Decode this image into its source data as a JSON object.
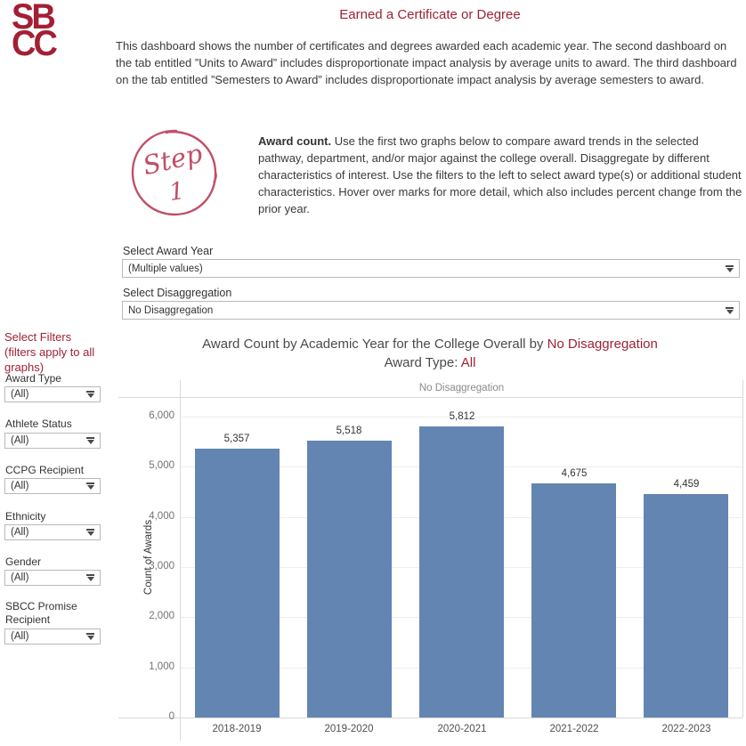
{
  "header": {
    "logo_line1": "SB",
    "logo_line2": "CC",
    "title": "Earned a Certificate or Degree",
    "description": "This dashboard shows the number of certificates and degrees awarded each academic year. The second dashboard on the tab entitled ”Units to Award” includes disproportionate impact analysis by average units to award. The third dashboard on the tab entitled ”Semesters to Award” includes disproportionate impact analysis by average semesters to award."
  },
  "step": {
    "circle_word": "Step",
    "circle_number": "1",
    "accent_color": "#c14f68",
    "bold_lead": "Award count.",
    "text": " Use the first two graphs below to compare award trends in the selected pathway, department, and/or major against the college overall. Disaggregate by different characteristics of interest. Use the filters to the left to select award type(s) or additional student characteristics. Hover over marks for more detail, which also includes percent change from the prior year."
  },
  "selectors": {
    "award_year_label": "Select Award Year",
    "award_year_value": "(Multiple values)",
    "disaggregation_label": "Select Disaggregation",
    "disaggregation_value": "No Disaggregation"
  },
  "sidebar": {
    "heading": "Select Filters (filters apply to all graphs)",
    "filters": [
      {
        "label": "Award Type",
        "value": "(All)"
      },
      {
        "label": "Athlete Status",
        "value": "(All)"
      },
      {
        "label": "CCPG Recipient",
        "value": "(All)"
      },
      {
        "label": "Ethnicity",
        "value": "(All)"
      },
      {
        "label": "Gender",
        "value": "(All)"
      },
      {
        "label": "SBCC Promise Recipient",
        "value": "(All)"
      }
    ]
  },
  "chart": {
    "title_prefix": "Award Count by Academic Year for the College Overall by ",
    "title_highlight": "No Disaggregation",
    "subtitle_prefix": "Award Type: ",
    "subtitle_value": "All",
    "panel_header": "No Disaggregation",
    "ylabel": "Count of Awards"
  },
  "chart_data": {
    "type": "bar",
    "title": "Award Count by Academic Year for the College Overall by No Disaggregation",
    "subtitle": "Award Type: All",
    "panel_header": "No Disaggregation",
    "categories": [
      "2018-2019",
      "2019-2020",
      "2020-2021",
      "2021-2022",
      "2022-2023"
    ],
    "values": [
      5357,
      5518,
      5812,
      4675,
      4459
    ],
    "value_labels": [
      "5,357",
      "5,518",
      "5,812",
      "4,675",
      "4,459"
    ],
    "ylabel": "Count of Awards",
    "ylim": [
      0,
      6000
    ],
    "ytick_values": [
      0,
      1000,
      2000,
      3000,
      4000,
      5000,
      6000
    ],
    "ytick_labels": [
      "0",
      "1,000",
      "2,000",
      "3,000",
      "4,000",
      "5,000",
      "6,000"
    ],
    "bar_color": "#6385b2",
    "grid": true,
    "legend": false
  }
}
